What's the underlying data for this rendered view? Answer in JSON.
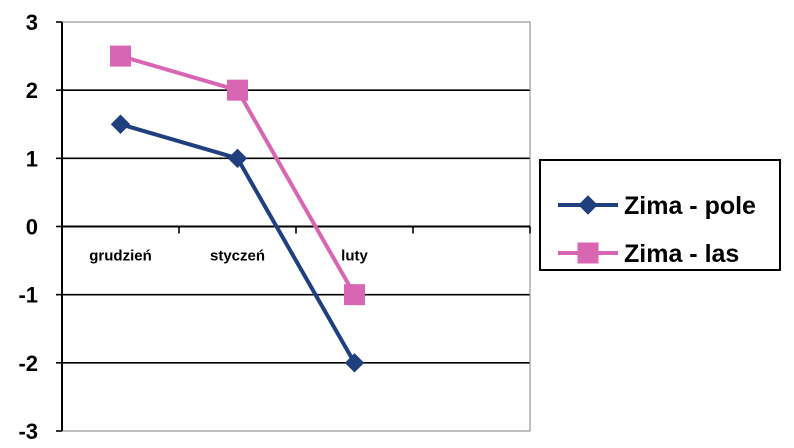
{
  "chart_data": {
    "type": "line",
    "categories": [
      "grudzień",
      "styczeń",
      "luty"
    ],
    "series": [
      {
        "name": "Zima - pole",
        "values": [
          1.5,
          1,
          -2
        ],
        "color": "#1f3f7f",
        "marker": "diamond"
      },
      {
        "name": "Zima - las",
        "values": [
          2.5,
          2,
          -1
        ],
        "color": "#d966b3",
        "marker": "square"
      }
    ],
    "ylim": [
      -3,
      3
    ],
    "yticks": [
      -3,
      -2,
      -1,
      0,
      1,
      2,
      3
    ],
    "category_slots": 4,
    "grid": true,
    "legend_position": "right"
  }
}
